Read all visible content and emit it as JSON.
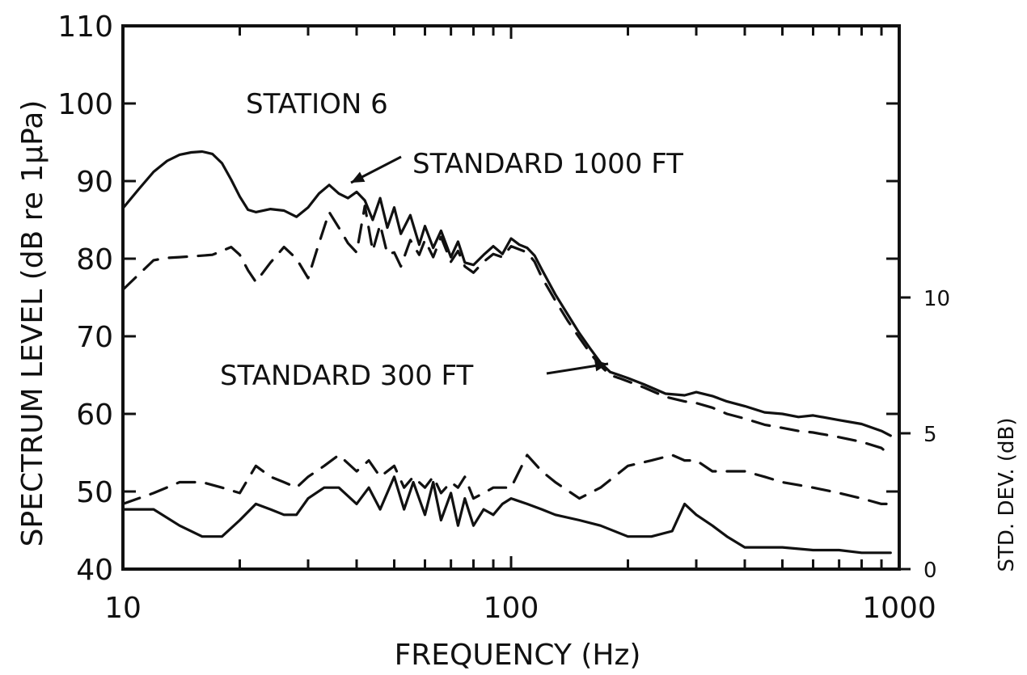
{
  "chart_data": {
    "type": "line",
    "title": "",
    "xlabel": "FREQUENCY (Hz)",
    "ylabel": "SPECTRUM LEVEL (dB re 1μPa)",
    "ylabel_right": "STD. DEV. (dB)",
    "x_scale": "log",
    "xlim": [
      10,
      1000
    ],
    "ylim": [
      40,
      110
    ],
    "x_tick_labels": [
      "10",
      "100",
      "1000"
    ],
    "y_tick_labels": [
      "40",
      "50",
      "60",
      "70",
      "80",
      "90",
      "100",
      "110"
    ],
    "right_axis": {
      "ylim": [
        0,
        20
      ],
      "tick_labels": [
        "0",
        "5",
        "10"
      ],
      "tick_values": [
        0,
        5,
        10
      ]
    },
    "annotations": {
      "station": "STATION 6",
      "label_1000": "STANDARD 1000 FT",
      "label_300": "STANDARD 300 FT"
    },
    "series": [
      {
        "key": "level_1000",
        "style": "solid",
        "axis": "left",
        "x": [
          10,
          11,
          12,
          13,
          14,
          15,
          16,
          17,
          18,
          19,
          20,
          21,
          22,
          24,
          26,
          28,
          30,
          32,
          34,
          36,
          38,
          40,
          42,
          44,
          46,
          48,
          50,
          52,
          55,
          58,
          60,
          63,
          66,
          70,
          73,
          76,
          80,
          85,
          90,
          95,
          100,
          105,
          110,
          115,
          120,
          130,
          140,
          150,
          160,
          170,
          180,
          190,
          200,
          220,
          250,
          280,
          300,
          330,
          360,
          400,
          450,
          500,
          550,
          600,
          700,
          800,
          900,
          950
        ],
        "y": [
          86.5,
          89,
          91.2,
          92.6,
          93.4,
          93.7,
          93.8,
          93.5,
          92.3,
          90.2,
          88,
          86.3,
          86,
          86.4,
          86.2,
          85.4,
          86.6,
          88.4,
          89.5,
          88.4,
          87.8,
          88.6,
          87.5,
          85,
          87.8,
          84,
          86.6,
          83.2,
          85.6,
          81.8,
          84.2,
          81.4,
          83.6,
          80.2,
          82.2,
          79.5,
          79.2,
          80.5,
          81.6,
          80.6,
          82.6,
          81.8,
          81.4,
          80.4,
          78.6,
          75.4,
          72.8,
          70.4,
          68.4,
          66.6,
          65.4,
          65,
          64.6,
          63.8,
          62.6,
          62.4,
          62.8,
          62.3,
          61.6,
          61,
          60.2,
          60,
          59.6,
          59.8,
          59.2,
          58.7,
          57.8,
          57.2
        ]
      },
      {
        "key": "level_300",
        "style": "dashed",
        "axis": "left",
        "x": [
          10,
          11,
          12,
          13,
          14,
          15,
          16,
          17,
          18,
          19,
          20,
          21,
          22,
          24,
          26,
          28,
          30,
          32,
          34,
          36,
          38,
          40,
          42,
          44,
          46,
          48,
          50,
          52,
          55,
          58,
          60,
          63,
          66,
          70,
          73,
          76,
          80,
          85,
          90,
          95,
          100,
          105,
          110,
          115,
          120,
          130,
          140,
          150,
          160,
          170,
          180,
          190,
          200,
          220,
          250,
          280,
          300,
          330,
          360,
          400,
          450,
          500,
          550,
          600,
          700,
          800,
          900,
          950
        ],
        "y": [
          76,
          78,
          79.8,
          80.1,
          80.2,
          80.3,
          80.4,
          80.5,
          81,
          81.5,
          80.5,
          78.5,
          77,
          79.5,
          81.5,
          80,
          77.5,
          82,
          86,
          84,
          82,
          80.8,
          86.8,
          81,
          84.4,
          80.6,
          80.8,
          79,
          82.4,
          80.5,
          82.4,
          80.2,
          82.8,
          79.6,
          81,
          79,
          78.2,
          79.6,
          80.6,
          80.2,
          81.6,
          81.2,
          80.8,
          79.6,
          77.6,
          74.6,
          72,
          69.8,
          67.8,
          66.2,
          65,
          64.6,
          64.2,
          63.4,
          62.2,
          61.6,
          61.4,
          60.8,
          60,
          59.4,
          58.6,
          58.2,
          57.8,
          57.6,
          57,
          56.4,
          55.6,
          54.6
        ]
      },
      {
        "key": "sd_1000",
        "style": "solid",
        "axis": "right",
        "x": [
          10,
          12,
          14,
          16,
          18,
          20,
          22,
          24,
          26,
          28,
          30,
          33,
          36,
          40,
          43,
          46,
          50,
          53,
          56,
          60,
          63,
          66,
          70,
          73,
          76,
          80,
          85,
          90,
          95,
          100,
          110,
          120,
          130,
          150,
          170,
          200,
          230,
          260,
          280,
          300,
          330,
          360,
          400,
          450,
          500,
          600,
          700,
          800,
          900,
          950
        ],
        "y": [
          2.2,
          2.2,
          1.6,
          1.2,
          1.2,
          1.8,
          2.4,
          2.2,
          2.0,
          2.0,
          2.6,
          3.0,
          3.0,
          2.4,
          3.0,
          2.2,
          3.4,
          2.2,
          3.2,
          2.0,
          3.2,
          1.8,
          2.8,
          1.6,
          2.6,
          1.6,
          2.2,
          2.0,
          2.4,
          2.6,
          2.4,
          2.2,
          2.0,
          1.8,
          1.6,
          1.2,
          1.2,
          1.4,
          2.4,
          2.0,
          1.6,
          1.2,
          0.8,
          0.8,
          0.8,
          0.7,
          0.7,
          0.6,
          0.6,
          0.6
        ]
      },
      {
        "key": "sd_300",
        "style": "dashed",
        "axis": "right",
        "x": [
          10,
          12,
          14,
          16,
          18,
          20,
          22,
          24,
          26,
          28,
          30,
          33,
          36,
          40,
          43,
          46,
          50,
          53,
          56,
          60,
          63,
          66,
          70,
          73,
          76,
          80,
          85,
          90,
          95,
          100,
          110,
          120,
          130,
          150,
          170,
          200,
          230,
          260,
          280,
          300,
          330,
          360,
          400,
          450,
          500,
          600,
          700,
          800,
          900,
          950
        ],
        "y": [
          2.4,
          2.8,
          3.2,
          3.2,
          3.0,
          2.8,
          3.8,
          3.4,
          3.2,
          3.0,
          3.4,
          3.8,
          4.2,
          3.6,
          4.0,
          3.4,
          3.8,
          3.0,
          3.4,
          3.0,
          3.4,
          2.8,
          3.2,
          3.0,
          3.4,
          2.6,
          2.8,
          3.0,
          3.0,
          3.0,
          4.2,
          3.6,
          3.2,
          2.6,
          3.0,
          3.8,
          4.0,
          4.2,
          4.0,
          4.0,
          3.6,
          3.6,
          3.6,
          3.4,
          3.2,
          3.0,
          2.8,
          2.6,
          2.4,
          2.4
        ]
      }
    ]
  }
}
